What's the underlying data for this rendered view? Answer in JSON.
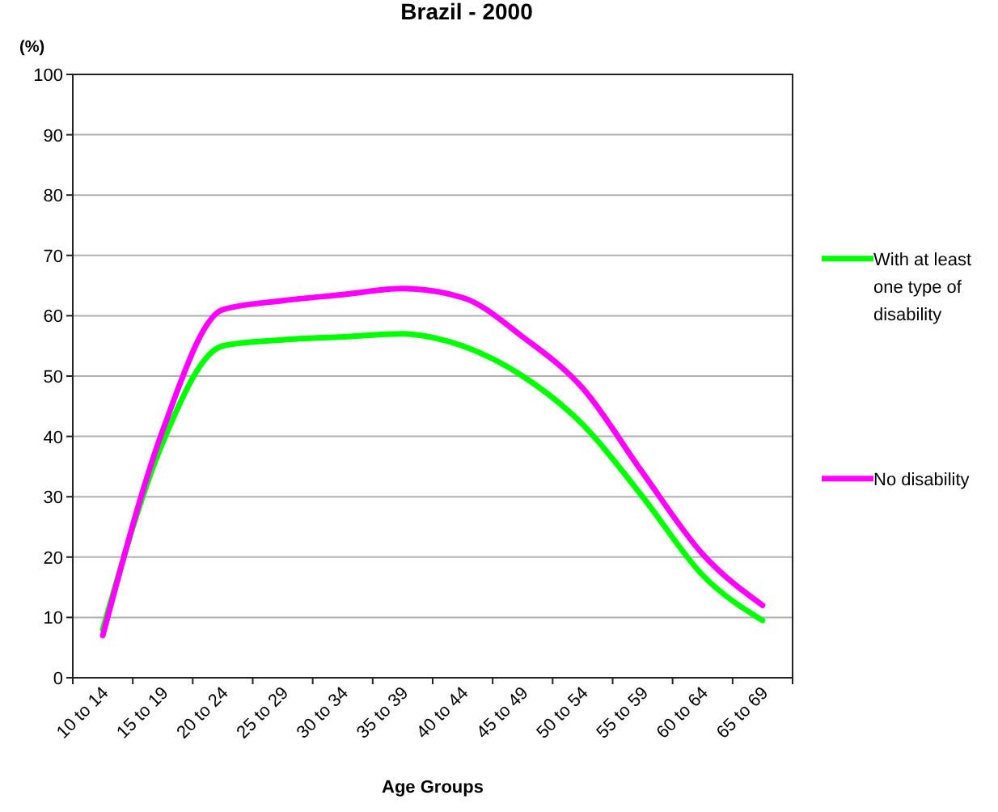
{
  "chart_data": {
    "type": "line",
    "title": "Brazil - 2000",
    "ylabel": "(%)",
    "xlabel": "Age Groups",
    "categories": [
      "10 to 14",
      "15 to 19",
      "20 to 24",
      "25 to 29",
      "30 to 34",
      "35 to 39",
      "40 to 44",
      "45 to 49",
      "50 to 54",
      "55 to 59",
      "60 to 64",
      "65 to 69"
    ],
    "series": [
      {
        "name": "With at least one type of disability",
        "color": "#00ff00",
        "values": [
          8,
          39,
          55,
          56,
          56.5,
          57,
          55,
          50,
          42,
          30,
          17,
          9.5
        ]
      },
      {
        "name": "No disability",
        "color": "#ff00ff",
        "values": [
          7,
          41,
          61,
          62.5,
          63.5,
          64.5,
          63,
          56.5,
          48,
          34,
          20.5,
          12
        ]
      }
    ],
    "ylim": [
      0,
      100
    ],
    "yticks": [
      0,
      10,
      20,
      30,
      40,
      50,
      60,
      70,
      80,
      90,
      100
    ],
    "grid": "y",
    "legend": "right",
    "marker": "none",
    "line_style": "solid"
  }
}
